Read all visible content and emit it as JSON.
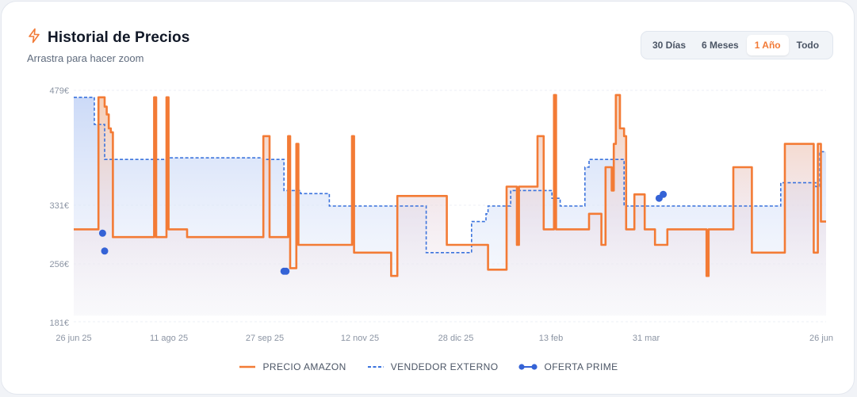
{
  "header": {
    "title": "Historial de Precios",
    "subtitle": "Arrastra para hacer zoom",
    "icon": "lightning-icon"
  },
  "range_buttons": [
    {
      "label": "30 Días",
      "active": false
    },
    {
      "label": "6 Meses",
      "active": false
    },
    {
      "label": "1 Año",
      "active": true
    },
    {
      "label": "Todo",
      "active": false
    }
  ],
  "colors": {
    "amazon": "#f37b35",
    "external": "#3b73dd",
    "prime": "#3563d6",
    "accent": "#f27a36"
  },
  "chart_data": {
    "type": "line",
    "title": "Historial de Precios",
    "x_tick_labels": [
      "26 jun 25",
      "11 ago 25",
      "27 sep 25",
      "12 nov 25",
      "28 dic 25",
      "13 feb",
      "31 mar",
      "26 jun"
    ],
    "y_tick_labels": [
      "479€",
      "331€",
      "256€",
      "181€"
    ],
    "ylim": [
      181,
      479
    ],
    "x_range_days": [
      0,
      365
    ],
    "grid": true,
    "legend_position": "bottom-center",
    "series": [
      {
        "name": "PRECIO AMAZON",
        "style": "step-solid",
        "x": [
          0,
          7,
          12,
          13,
          15,
          16,
          17,
          18,
          19,
          30,
          38,
          39,
          40,
          44,
          45,
          46,
          53,
          54,
          55,
          91,
          92,
          93,
          95,
          103,
          104,
          105,
          107,
          108,
          109,
          110,
          112,
          134,
          135,
          136,
          153,
          154,
          155,
          156,
          157,
          180,
          181,
          182,
          200,
          201,
          202,
          208,
          209,
          210,
          214,
          215,
          216,
          224,
          225,
          226,
          228,
          231,
          232,
          233,
          234,
          240,
          241,
          246,
          250,
          251,
          256,
          257,
          258,
          260,
          261,
          262,
          263,
          265,
          267,
          268,
          270,
          272,
          276,
          277,
          281,
          282,
          283,
          288,
          289,
          290,
          296,
          299,
          307,
          308,
          309,
          320,
          329,
          330,
          343,
          344,
          345,
          358,
          359,
          360,
          361,
          362,
          362.5,
          365
        ],
        "y": [
          300,
          300,
          470,
          470,
          458,
          448,
          430,
          425,
          290,
          290,
          290,
          470,
          290,
          290,
          470,
          300,
          300,
          300,
          290,
          290,
          420,
          420,
          290,
          290,
          420,
          250,
          250,
          410,
          280,
          280,
          280,
          280,
          420,
          270,
          270,
          240,
          240,
          240,
          343,
          343,
          280,
          280,
          280,
          248,
          248,
          248,
          248,
          355,
          355,
          280,
          355,
          355,
          420,
          420,
          300,
          300,
          300,
          473,
          300,
          300,
          300,
          300,
          320,
          320,
          280,
          280,
          380,
          380,
          350,
          410,
          473,
          430,
          420,
          300,
          300,
          345,
          345,
          300,
          300,
          280,
          280,
          300,
          300,
          300,
          300,
          300,
          240,
          300,
          300,
          380,
          270,
          270,
          270,
          270,
          410,
          410,
          270,
          270,
          410,
          410,
          310,
          310
        ]
      },
      {
        "name": "VENDEDOR EXTERNO",
        "style": "step-dashed",
        "x": [
          0,
          7,
          8,
          9,
          10,
          15,
          30,
          45,
          46,
          92,
          102,
          110,
          124,
          125,
          155,
          156,
          170,
          171,
          182,
          190,
          191,
          193,
          200,
          201,
          212,
          226,
          227,
          230,
          232,
          236,
          248,
          250,
          267,
          268,
          270,
          282,
          330,
          343,
          360,
          361,
          362,
          365
        ],
        "y": [
          470,
          470,
          470,
          470,
          435,
          390,
          390,
          390,
          392,
          390,
          350,
          346,
          330,
          330,
          330,
          330,
          330,
          270,
          270,
          270,
          270,
          310,
          320,
          330,
          350,
          350,
          350,
          350,
          340,
          330,
          380,
          390,
          330,
          330,
          330,
          330,
          330,
          360,
          355,
          355,
          400,
          400
        ]
      },
      {
        "name": "OFERTA PRIME",
        "style": "markers",
        "x": [
          14,
          15,
          102,
          103,
          284,
          286
        ],
        "y": [
          295,
          272,
          246,
          246,
          340,
          345
        ]
      }
    ]
  }
}
